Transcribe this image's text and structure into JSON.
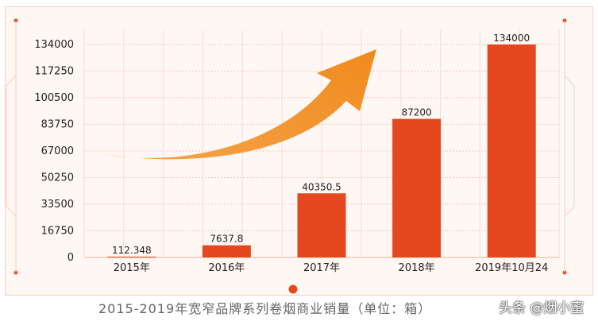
{
  "chart_data": {
    "type": "bar",
    "categories": [
      "2015年",
      "2016年",
      "2017年",
      "2018年",
      "2019年10月24"
    ],
    "values": [
      112.348,
      7637.8,
      40350.5,
      87200,
      134000
    ],
    "data_labels": [
      "112.348",
      "7637.8",
      "40350.5",
      "87200",
      "134000"
    ],
    "yticks": [
      0,
      16750,
      33500,
      50250,
      67000,
      83750,
      100500,
      117250,
      134000
    ],
    "ylim": [
      0,
      134000
    ],
    "grid": true,
    "title": "",
    "xlabel": "",
    "ylabel": ""
  },
  "caption": "2015-2019年宽窄品牌系列卷烟商业销量（单位：箱）",
  "watermark": "头条 @烟小蜜",
  "colors": {
    "bar": "#e5481e",
    "arrow": "#f08a1c",
    "frame": "#f6cfc0",
    "accent_dot": "#e5481e"
  }
}
